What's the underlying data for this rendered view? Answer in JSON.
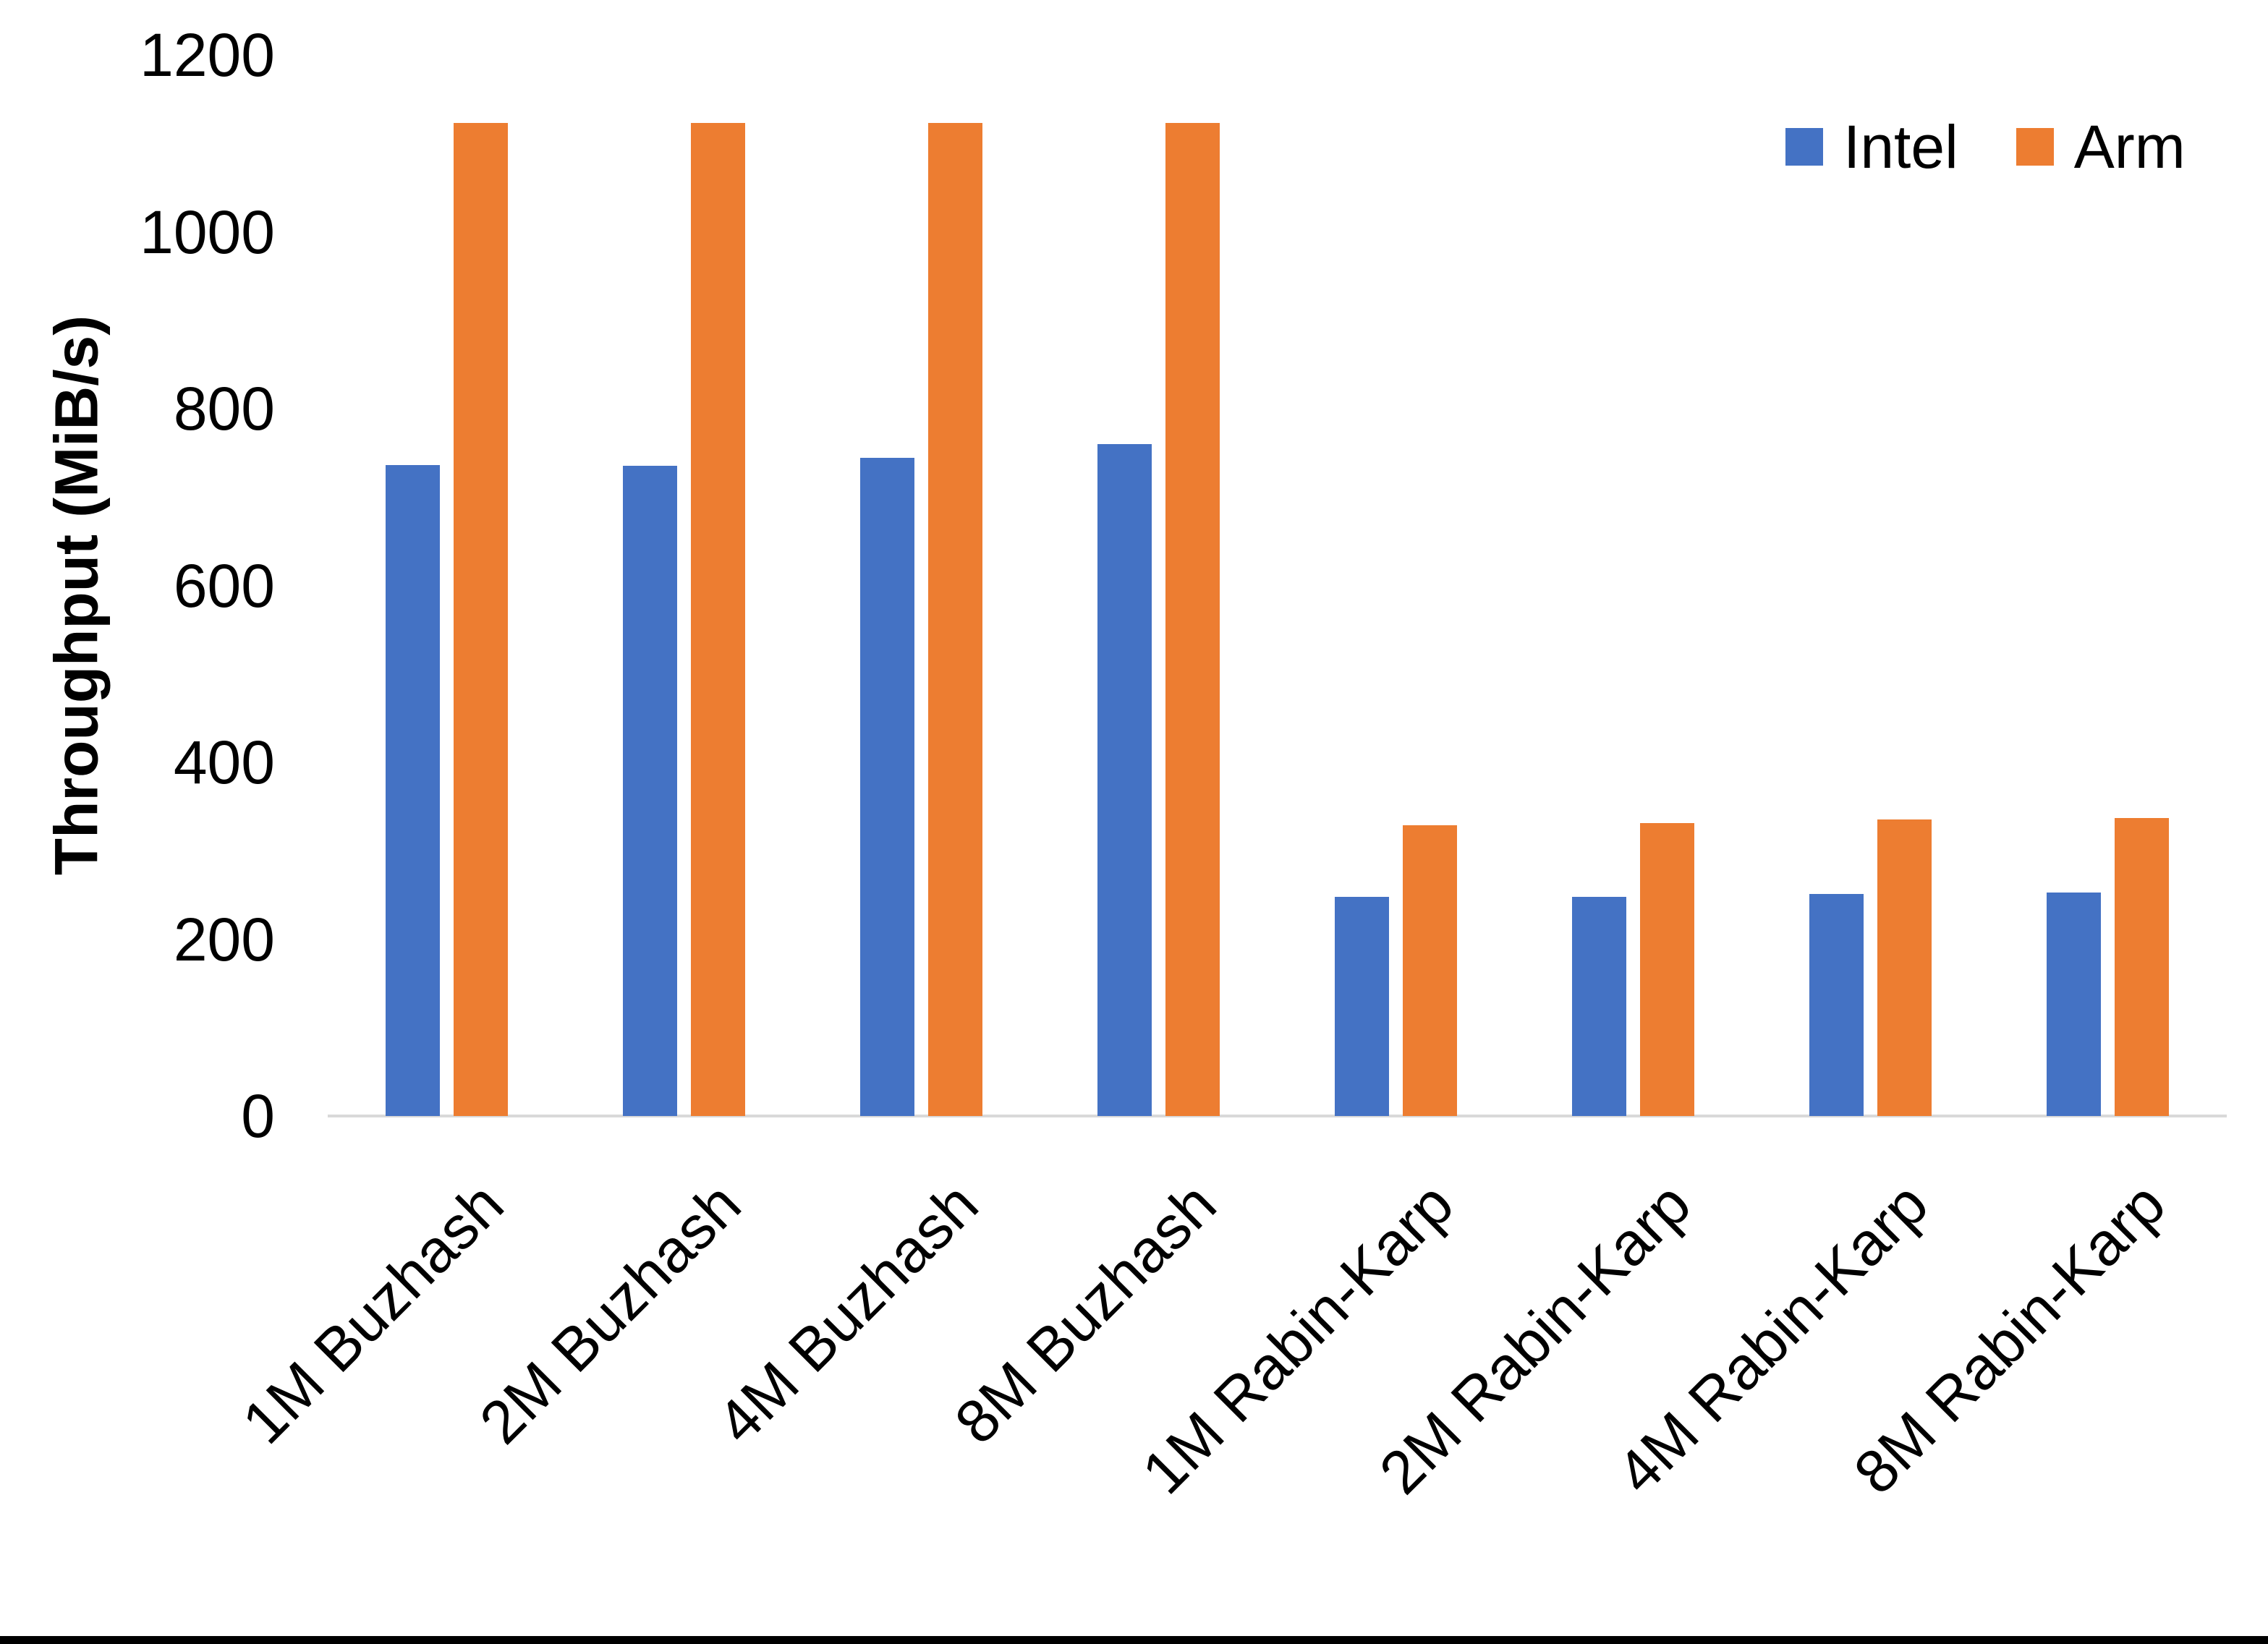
{
  "axis": {
    "y_title": "Throughput (MiB/s)"
  },
  "legend": {
    "items": [
      {
        "label": "Intel",
        "color": "#4472C4"
      },
      {
        "label": "Arm",
        "color": "#ED7D31"
      }
    ]
  },
  "colors": {
    "intel": "#4472C4",
    "arm": "#ED7D31",
    "axis_line": "#D9D9D9",
    "text": "#000000",
    "bottom_border": "#000000"
  },
  "chart_data": {
    "type": "bar",
    "title": "",
    "xlabel": "",
    "ylabel": "Throughput (MiB/s)",
    "ylim": [
      0,
      1200
    ],
    "yticks": [
      0,
      200,
      400,
      600,
      800,
      1000,
      1200
    ],
    "grid": false,
    "legend_position": "top-right",
    "categories": [
      "1M Buzhash",
      "2M Buzhash",
      "4M Buzhash",
      "8M Buzhash",
      "1M Rabin-Karp",
      "2M Rabin-Karp",
      "4M Rabin-Karp",
      "8M Rabin-Karp"
    ],
    "series": [
      {
        "name": "Intel",
        "color": "#4472C4",
        "values": [
          736,
          735,
          744,
          760,
          248,
          248,
          251,
          253
        ]
      },
      {
        "name": "Arm",
        "color": "#ED7D31",
        "values": [
          1123,
          1123,
          1123,
          1123,
          329,
          331,
          335,
          337
        ]
      }
    ]
  }
}
